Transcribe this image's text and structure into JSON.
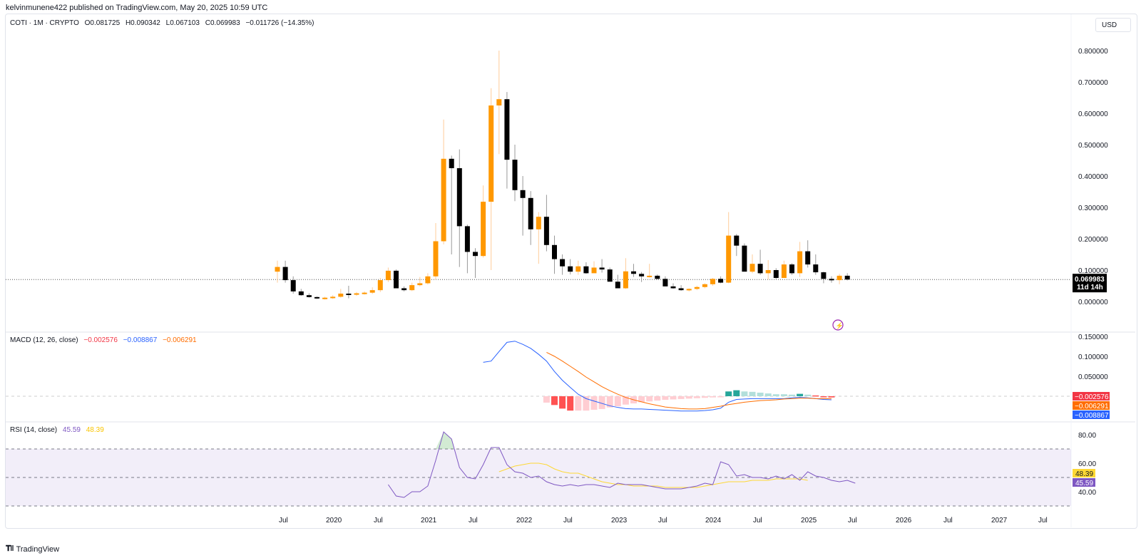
{
  "header": {
    "publisher_line": "kelvinmunene422 published on TradingView.com, May 20, 2025 10:59 UTC"
  },
  "symbol_legend": {
    "symbol": "COTI · 1M · CRYPTO",
    "open": "O0.081725",
    "high": "H0.090342",
    "low": "L0.067103",
    "close": "C0.069983",
    "change": "−0.011726 (−14.35%)"
  },
  "currency_button": "USD",
  "price_axis": {
    "ticks": [
      "0.800000",
      "0.700000",
      "0.600000",
      "0.500000",
      "0.400000",
      "0.300000",
      "0.200000",
      "0.100000",
      "0.000000"
    ],
    "last_price_label": "0.069983",
    "countdown_label": "11d 14h"
  },
  "macd": {
    "title": "MACD (12, 26, close)",
    "histogram_value": "−0.002576",
    "macd_value": "−0.008867",
    "signal_value": "−0.006291",
    "axis_ticks": [
      "0.150000",
      "0.100000",
      "0.050000"
    ],
    "colors": {
      "histogram": "#f23645",
      "macd": "#2962ff",
      "signal": "#ff6d00"
    }
  },
  "rsi": {
    "title": "RSI (14, close)",
    "rsi_value": "45.59",
    "ma_value": "48.39",
    "axis_ticks": [
      "80.00",
      "60.00",
      "40.00"
    ],
    "colors": {
      "rsi": "#7e57c2",
      "ma": "#fdd835"
    }
  },
  "time_axis": {
    "labels": [
      "Jul",
      "2020",
      "Jul",
      "2021",
      "Jul",
      "2022",
      "Jul",
      "2023",
      "Jul",
      "2024",
      "Jul",
      "2025",
      "Jul",
      "2026",
      "Jul",
      "2027",
      "Jul"
    ]
  },
  "footer": {
    "brand": "TradingView"
  },
  "colors": {
    "up": "#ff9800",
    "down": "#000000",
    "rsi_band": "#7e57c2"
  },
  "chart_data": [
    {
      "type": "candlestick",
      "title": "COTI · 1M · CRYPTO",
      "ylabel": "USD",
      "ylim": [
        -0.02,
        0.82
      ],
      "x_start": "2019-06",
      "interval": "1M",
      "ohlc": [
        [
          0.095,
          0.13,
          0.06,
          0.11
        ],
        [
          0.11,
          0.13,
          0.06,
          0.068
        ],
        [
          0.068,
          0.08,
          0.025,
          0.032
        ],
        [
          0.032,
          0.04,
          0.018,
          0.02
        ],
        [
          0.02,
          0.026,
          0.012,
          0.014
        ],
        [
          0.014,
          0.016,
          0.008,
          0.01
        ],
        [
          0.01,
          0.015,
          0.006,
          0.012
        ],
        [
          0.012,
          0.02,
          0.008,
          0.015
        ],
        [
          0.015,
          0.04,
          0.012,
          0.025
        ],
        [
          0.025,
          0.05,
          0.01,
          0.022
        ],
        [
          0.022,
          0.03,
          0.018,
          0.026
        ],
        [
          0.026,
          0.032,
          0.022,
          0.028
        ],
        [
          0.028,
          0.045,
          0.024,
          0.036
        ],
        [
          0.036,
          0.075,
          0.03,
          0.068
        ],
        [
          0.068,
          0.108,
          0.062,
          0.098
        ],
        [
          0.098,
          0.102,
          0.058,
          0.042
        ],
        [
          0.042,
          0.048,
          0.032,
          0.036
        ],
        [
          0.036,
          0.06,
          0.033,
          0.052
        ],
        [
          0.052,
          0.078,
          0.048,
          0.058
        ],
        [
          0.058,
          0.09,
          0.054,
          0.08
        ],
        [
          0.08,
          0.25,
          0.07,
          0.192
        ],
        [
          0.192,
          0.58,
          0.182,
          0.455
        ],
        [
          0.455,
          0.465,
          0.15,
          0.425
        ],
        [
          0.425,
          0.485,
          0.11,
          0.24
        ],
        [
          0.24,
          0.245,
          0.09,
          0.158
        ],
        [
          0.158,
          0.17,
          0.075,
          0.145
        ],
        [
          0.145,
          0.37,
          0.14,
          0.318
        ],
        [
          0.318,
          0.68,
          0.1,
          0.625
        ],
        [
          0.625,
          0.8,
          0.47,
          0.645
        ],
        [
          0.645,
          0.668,
          0.36,
          0.452
        ],
        [
          0.452,
          0.5,
          0.32,
          0.355
        ],
        [
          0.355,
          0.4,
          0.21,
          0.33
        ],
        [
          0.33,
          0.352,
          0.18,
          0.23
        ],
        [
          0.23,
          0.285,
          0.12,
          0.27
        ],
        [
          0.27,
          0.34,
          0.16,
          0.18
        ],
        [
          0.18,
          0.21,
          0.088,
          0.135
        ],
        [
          0.135,
          0.15,
          0.085,
          0.112
        ],
        [
          0.112,
          0.135,
          0.086,
          0.095
        ],
        [
          0.095,
          0.13,
          0.085,
          0.112
        ],
        [
          0.112,
          0.125,
          0.088,
          0.09
        ],
        [
          0.09,
          0.128,
          0.092,
          0.108
        ],
        [
          0.108,
          0.135,
          0.092,
          0.102
        ],
        [
          0.102,
          0.108,
          0.07,
          0.063
        ],
        [
          0.063,
          0.085,
          0.055,
          0.042
        ],
        [
          0.042,
          0.138,
          0.04,
          0.096
        ],
        [
          0.096,
          0.12,
          0.078,
          0.088
        ],
        [
          0.088,
          0.094,
          0.062,
          0.08
        ],
        [
          0.08,
          0.12,
          0.076,
          0.082
        ],
        [
          0.082,
          0.086,
          0.07,
          0.072
        ],
        [
          0.072,
          0.08,
          0.052,
          0.048
        ],
        [
          0.048,
          0.058,
          0.04,
          0.042
        ],
        [
          0.042,
          0.052,
          0.034,
          0.036
        ],
        [
          0.036,
          0.042,
          0.032,
          0.04
        ],
        [
          0.04,
          0.05,
          0.036,
          0.046
        ],
        [
          0.046,
          0.058,
          0.042,
          0.055
        ],
        [
          0.055,
          0.075,
          0.05,
          0.072
        ],
        [
          0.072,
          0.08,
          0.058,
          0.06
        ],
        [
          0.06,
          0.285,
          0.058,
          0.21
        ],
        [
          0.21,
          0.215,
          0.145,
          0.178
        ],
        [
          0.178,
          0.185,
          0.1,
          0.095
        ],
        [
          0.095,
          0.15,
          0.09,
          0.12
        ],
        [
          0.12,
          0.165,
          0.085,
          0.09
        ],
        [
          0.09,
          0.132,
          0.07,
          0.1
        ],
        [
          0.1,
          0.106,
          0.07,
          0.075
        ],
        [
          0.075,
          0.13,
          0.076,
          0.118
        ],
        [
          0.118,
          0.122,
          0.085,
          0.09
        ],
        [
          0.09,
          0.19,
          0.078,
          0.16
        ],
        [
          0.16,
          0.195,
          0.108,
          0.118
        ],
        [
          0.118,
          0.15,
          0.085,
          0.093
        ],
        [
          0.093,
          0.095,
          0.058,
          0.072
        ],
        [
          0.072,
          0.08,
          0.06,
          0.068
        ],
        [
          0.068,
          0.088,
          0.055,
          0.082
        ],
        [
          0.082,
          0.09,
          0.067,
          0.07
        ]
      ]
    },
    {
      "type": "line",
      "title": "MACD (12, 26, close)",
      "series": [
        {
          "name": "MACD",
          "start_index": 26,
          "values": [
            0.085,
            0.088,
            0.112,
            0.135,
            0.138,
            0.13,
            0.12,
            0.105,
            0.088,
            0.062,
            0.04,
            0.022,
            0.005,
            -0.006,
            -0.012,
            -0.018,
            -0.024,
            -0.028,
            -0.031,
            -0.032,
            -0.032,
            -0.033,
            -0.034,
            -0.035,
            -0.036,
            -0.037,
            -0.037,
            -0.037,
            -0.036,
            -0.034,
            -0.03,
            -0.015,
            -0.008,
            -0.007,
            -0.006,
            -0.006,
            -0.006,
            -0.006,
            -0.006,
            -0.004,
            -0.003,
            -0.004,
            -0.006,
            -0.008,
            -0.009
          ]
        },
        {
          "name": "Signal",
          "start_index": 34,
          "values": [
            0.11,
            0.1,
            0.088,
            0.075,
            0.062,
            0.048,
            0.036,
            0.024,
            0.014,
            0.005,
            -0.003,
            -0.009,
            -0.014,
            -0.019,
            -0.023,
            -0.027,
            -0.029,
            -0.031,
            -0.032,
            -0.032,
            -0.031,
            -0.028,
            -0.025,
            -0.021,
            -0.018,
            -0.015,
            -0.013,
            -0.011,
            -0.01,
            -0.009,
            -0.007,
            -0.006,
            -0.005,
            -0.005,
            -0.006,
            -0.006,
            -0.006
          ]
        },
        {
          "name": "Histogram",
          "start_index": 34,
          "values": [
            -0.016,
            -0.022,
            -0.031,
            -0.036,
            -0.036,
            -0.036,
            -0.034,
            -0.032,
            -0.028,
            -0.025,
            -0.021,
            -0.018,
            -0.015,
            -0.013,
            -0.011,
            -0.009,
            -0.008,
            -0.007,
            -0.006,
            -0.005,
            -0.004,
            -0.003,
            -0.002,
            0.012,
            0.015,
            0.012,
            0.011,
            0.009,
            0.007,
            0.005,
            0.005,
            0.004,
            0.006,
            0.004,
            0.002,
            -0.001,
            -0.003
          ]
        }
      ]
    },
    {
      "type": "line",
      "title": "RSI (14, close)",
      "ylim": [
        25,
        90
      ],
      "bands": [
        70,
        50,
        30
      ],
      "series": [
        {
          "name": "RSI",
          "start_index": 14,
          "values": [
            45,
            37,
            36,
            40,
            40,
            44,
            62,
            82,
            77,
            57,
            50,
            49,
            59,
            71,
            71,
            59,
            54,
            53,
            50,
            51,
            47,
            45,
            44,
            45,
            44,
            45,
            45,
            44,
            43,
            46,
            45,
            45,
            45,
            44,
            43,
            42,
            42,
            42,
            43,
            44,
            46,
            45,
            61,
            59,
            51,
            52,
            50,
            50,
            49,
            51,
            49,
            52,
            48,
            54,
            51,
            50,
            48,
            47,
            48,
            46
          ]
        },
        {
          "name": "RSI-based MA",
          "start_index": 28,
          "values": [
            54,
            56,
            58,
            59,
            60,
            60,
            59,
            56,
            54,
            53,
            53,
            51,
            49,
            47,
            46,
            45,
            45,
            44,
            44,
            44,
            44,
            43,
            43,
            43,
            43,
            43,
            44,
            45,
            46,
            47,
            47,
            47,
            48,
            48,
            48,
            49,
            49,
            49,
            49,
            48
          ]
        }
      ]
    }
  ]
}
